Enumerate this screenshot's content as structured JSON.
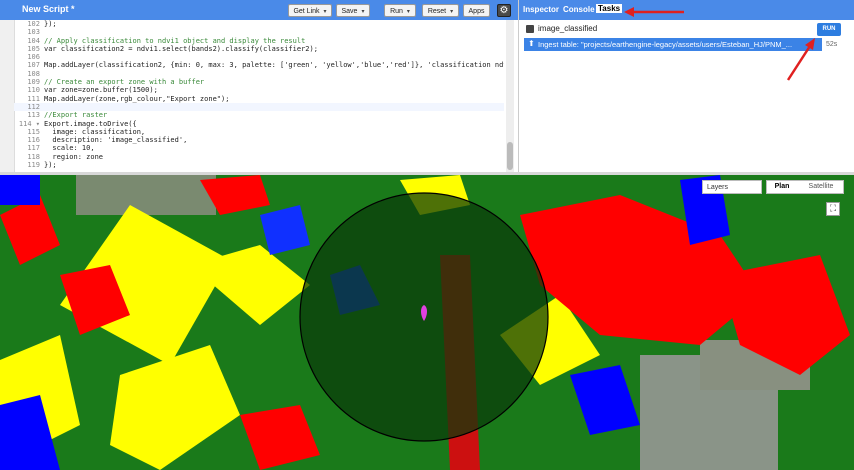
{
  "editor": {
    "title": "New Script *",
    "buttons": {
      "get_link": "Get Link",
      "save": "Save",
      "run": "Run",
      "reset": "Reset",
      "apps": "Apps"
    },
    "code_lines": [
      {
        "n": "102",
        "text": "});",
        "type": "code"
      },
      {
        "n": "103",
        "text": "",
        "type": "code"
      },
      {
        "n": "104",
        "text": "// Apply classification to ndvi1 object and display the result",
        "type": "cm"
      },
      {
        "n": "105",
        "text": "var classification2 = ndvi1.select(bands2).classify(classifier2);",
        "type": "code"
      },
      {
        "n": "106",
        "text": "",
        "type": "code"
      },
      {
        "n": "107",
        "text": "Map.addLayer(classification2, {min: 0, max: 3, palette: ['green', 'yellow','blue','red']}, 'classification ndvi');",
        "type": "code"
      },
      {
        "n": "108",
        "text": "",
        "type": "code"
      },
      {
        "n": "109",
        "text": "// Create an export zone with a buffer",
        "type": "cm"
      },
      {
        "n": "110",
        "text": "var zone=zone.buffer(1500);",
        "type": "code"
      },
      {
        "n": "111",
        "text": "Map.addLayer(zone,rgb_colour,\"Export zone\");",
        "type": "code"
      },
      {
        "n": "112",
        "text": "",
        "type": "cur"
      },
      {
        "n": "113",
        "text": "//Export raster",
        "type": "cm"
      },
      {
        "n": "114 ▾",
        "text": "Export.image.toDrive({",
        "type": "code"
      },
      {
        "n": "115",
        "text": "  image: classification,",
        "type": "code"
      },
      {
        "n": "116",
        "text": "  description: 'image_classified',",
        "type": "code"
      },
      {
        "n": "117",
        "text": "  scale: 10,",
        "type": "code"
      },
      {
        "n": "118",
        "text": "  region: zone",
        "type": "code"
      },
      {
        "n": "119",
        "text": "});",
        "type": "code"
      }
    ]
  },
  "right_panel": {
    "tabs": {
      "inspector": "Inspector",
      "console": "Console",
      "tasks": "Tasks"
    },
    "task": {
      "name": "image_classified",
      "run_label": "RUN"
    },
    "ingest": {
      "text": "Ingest table: \"projects/earthengine-legacy/assets/users/Esteban_HJ/PNM_...",
      "time": "52s"
    }
  },
  "map": {
    "layers_label": "Layers",
    "map_label": "Plan",
    "satellite_label": "Satellite"
  },
  "colors": {
    "header_blue": "#4a8ae8",
    "class_green": "#1a7a1a",
    "class_yellow": "#ffff00",
    "class_blue": "#0000ff",
    "class_red": "#ff0000",
    "arrow_red": "#e02020"
  }
}
